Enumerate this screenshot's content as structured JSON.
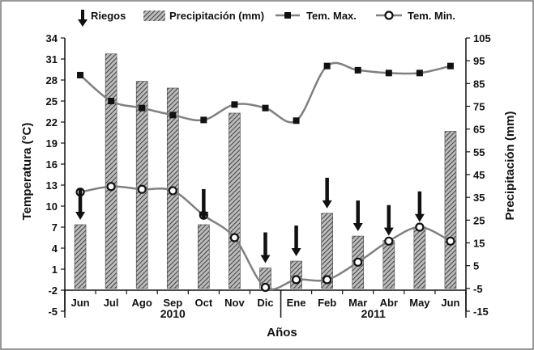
{
  "chart_data": {
    "type": "bar+line",
    "categories": [
      "Jun",
      "Jul",
      "Ago",
      "Sep",
      "Oct",
      "Nov",
      "Dic",
      "Ene",
      "Feb",
      "Mar",
      "Abr",
      "May",
      "Jun"
    ],
    "xlabel": "Años",
    "year_groups": [
      {
        "label": "2010",
        "from": 0,
        "to": 6
      },
      {
        "label": "2011",
        "from": 7,
        "to": 12
      }
    ],
    "left_axis": {
      "label": "Temperatura (°C)",
      "min": -5,
      "max": 34,
      "ticks": [
        34,
        31,
        28,
        25,
        22,
        19,
        16,
        13,
        10,
        7,
        4,
        1,
        -2,
        -5
      ]
    },
    "right_axis": {
      "label": "Precipitación (mm)",
      "min": -15,
      "max": 105,
      "ticks": [
        105,
        95,
        85,
        75,
        65,
        55,
        45,
        35,
        25,
        15,
        5,
        -5,
        -15
      ]
    },
    "series": [
      {
        "name": "Precipitación (mm)",
        "type": "bar",
        "axis": "right",
        "values": [
          23,
          98,
          86,
          83,
          23,
          72,
          4,
          7,
          28,
          18,
          16,
          22,
          64
        ]
      },
      {
        "name": "Tem. Max.",
        "type": "line",
        "axis": "left",
        "marker": "square",
        "values": [
          28.7,
          25,
          24,
          23,
          22.3,
          24.5,
          24,
          22.2,
          30,
          29.4,
          29,
          29,
          30
        ]
      },
      {
        "name": "Tem. Min.",
        "type": "line",
        "axis": "left",
        "marker": "circle",
        "values": [
          12,
          12.8,
          12.4,
          12.2,
          8.7,
          5.5,
          -1.6,
          -0.5,
          -0.5,
          2,
          5,
          7,
          5
        ]
      },
      {
        "name": "Riegos",
        "type": "arrow",
        "months": [
          "Jun",
          "Oct",
          "Dic",
          "Ene",
          "Feb",
          "Mar",
          "Abr",
          "May"
        ]
      }
    ],
    "legend": [
      {
        "label": "Riegos",
        "kind": "arrow"
      },
      {
        "label": "Precipitación (mm)",
        "kind": "bar"
      },
      {
        "label": "Tem. Max.",
        "kind": "square-line"
      },
      {
        "label": "Tem. Min.",
        "kind": "circle-line"
      }
    ]
  }
}
